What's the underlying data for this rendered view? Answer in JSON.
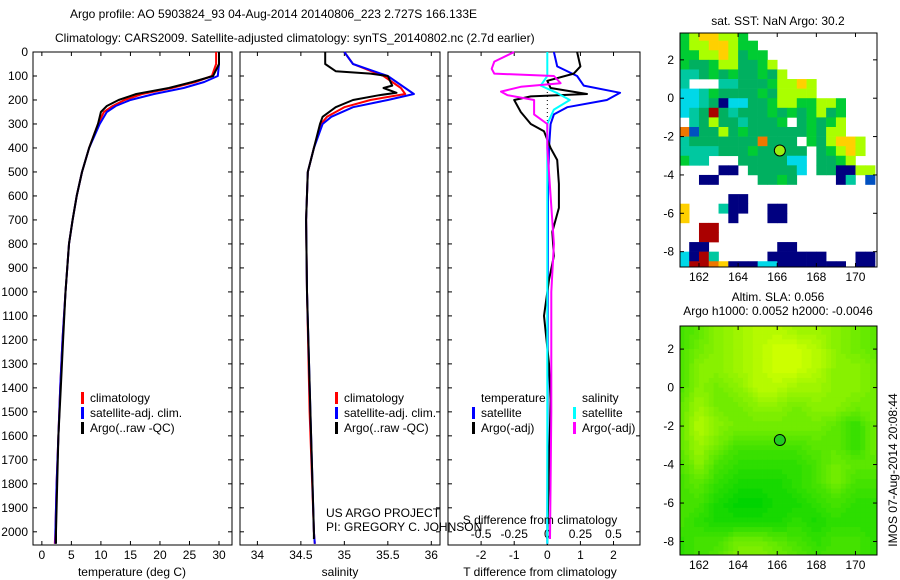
{
  "title": {
    "line1": "Argo profile: AO 5903824_93 04-Aug-2014 20140806_223 2.727S 166.133E",
    "line2": "Climatology: CARS2009. Satellite-adjusted climatology: synTS_20140802.nc (2.7d earlier)"
  },
  "credits": {
    "project": "US ARGO PROJECT",
    "pi": "PI: GREGORY C. JOHNSON",
    "imos": "IMOS 07-Aug-2014 20:08:44"
  },
  "colors": {
    "climatology": "#ff0000",
    "satellite": "#0000ff",
    "argo": "#000000",
    "sal_satellite": "#00ffff",
    "sal_argo": "#ff00ff"
  },
  "chart_data": [
    {
      "type": "line",
      "id": "temperature",
      "xlabel": "temperature (deg C)",
      "ylabel": "",
      "xlim": [
        -1.5,
        32.2
      ],
      "ylim": [
        0,
        2055
      ],
      "y_reversed": true,
      "xticks": [
        0,
        5,
        10,
        15,
        20,
        25,
        30
      ],
      "yticks": [
        0,
        100,
        200,
        300,
        400,
        500,
        600,
        700,
        800,
        900,
        1000,
        1100,
        1200,
        1300,
        1400,
        1500,
        1600,
        1700,
        1800,
        1900,
        2000
      ],
      "legend": [
        "climatology",
        "satellite-adj. clim.",
        "Argo(..raw -QC)"
      ],
      "legend_position": "lower-left",
      "depth": [
        0,
        50,
        100,
        125,
        150,
        175,
        200,
        225,
        250,
        300,
        400,
        500,
        600,
        700,
        800,
        1000,
        1200,
        1400,
        1600,
        1800,
        2000,
        2050
      ],
      "series": [
        {
          "name": "climatology",
          "color": "#ff0000",
          "values": [
            29.5,
            29.5,
            28.8,
            26,
            22,
            17,
            14,
            12,
            10.5,
            9.5,
            8,
            6.8,
            5.9,
            5.2,
            4.6,
            4.0,
            3.5,
            3.1,
            2.8,
            2.5,
            2.3,
            2.2
          ]
        },
        {
          "name": "satellite-adj. clim.",
          "color": "#0000ff",
          "values": [
            30,
            30,
            29.8,
            27.5,
            24,
            19,
            15,
            12.5,
            11,
            9.8,
            8,
            6.8,
            5.9,
            5.2,
            4.6,
            4.0,
            3.5,
            3.1,
            2.8,
            2.5,
            2.3,
            2.3
          ]
        },
        {
          "name": "Argo(..raw -QC)",
          "color": "#000000",
          "values": [
            30,
            30,
            29,
            25.5,
            21.5,
            16,
            13,
            11,
            10,
            9.5,
            8,
            6.8,
            5.9,
            5.2,
            4.6,
            4.0,
            3.6,
            3.2,
            2.8,
            2.6,
            2.4,
            2.4
          ]
        }
      ]
    },
    {
      "type": "line",
      "id": "salinity",
      "xlabel": "salinity",
      "xlim": [
        33.8,
        36.1
      ],
      "ylim": [
        0,
        2055
      ],
      "y_reversed": true,
      "xticks": [
        34,
        34.5,
        35,
        35.5,
        36
      ],
      "xticklabels": [
        "34",
        "34.5",
        "35",
        "35.5",
        "36"
      ],
      "legend": [
        "climatology",
        "satellite-adj. clim.",
        "Argo(..raw -QC)"
      ],
      "series": [
        {
          "name": "climatology",
          "color": "#ff0000",
          "depth": [
            0,
            50,
            100,
            150,
            175,
            200,
            230,
            270,
            300,
            400,
            500,
            700,
            1000,
            1500,
            2000,
            2050
          ],
          "values": [
            35.0,
            35.1,
            35.45,
            35.65,
            35.7,
            35.3,
            35.0,
            34.8,
            34.73,
            34.65,
            34.58,
            34.56,
            34.57,
            34.6,
            34.65,
            34.66
          ]
        },
        {
          "name": "satellite-adj. clim.",
          "color": "#0000ff",
          "depth": [
            0,
            50,
            100,
            150,
            175,
            200,
            230,
            270,
            300,
            400,
            500,
            700,
            1000,
            1500,
            2000,
            2050
          ],
          "values": [
            35.0,
            35.1,
            35.5,
            35.7,
            35.8,
            35.5,
            35.1,
            34.85,
            34.75,
            34.65,
            34.58,
            34.56,
            34.57,
            34.61,
            34.65,
            34.66
          ]
        },
        {
          "name": "Argo(..raw -QC)",
          "color": "#000000",
          "depth": [
            0,
            50,
            80,
            90,
            100,
            140,
            150,
            170,
            180,
            200,
            230,
            270,
            300,
            400,
            500,
            700,
            1000,
            1500,
            2000,
            2030
          ],
          "values": [
            34.78,
            34.78,
            34.9,
            35.3,
            35.5,
            35.55,
            35.45,
            35.6,
            35.4,
            35.1,
            34.9,
            34.75,
            34.72,
            34.65,
            34.58,
            34.56,
            34.57,
            34.61,
            34.65,
            34.65
          ]
        }
      ]
    },
    {
      "type": "line",
      "id": "difference",
      "xlabel": "T difference from climatology",
      "xlabel2": "S difference from climatology",
      "xlim": [
        -3.0,
        2.8
      ],
      "xlim2": [
        -0.75,
        0.7
      ],
      "ylim": [
        0,
        2055
      ],
      "y_reversed": true,
      "xticks": [
        -2,
        -1,
        0,
        1,
        2
      ],
      "xticks2": [
        -0.5,
        -0.25,
        0,
        0.25,
        0.5
      ],
      "xticklabels2": [
        "-0.5",
        "-0.25",
        "0",
        "0.25",
        "0.5"
      ],
      "legend_headers": [
        "temperature",
        "salinity"
      ],
      "legend": [
        "satellite",
        "Argo(-adj)",
        "satellite",
        "Argo(-adj)"
      ],
      "series": [
        {
          "name": "T satellite",
          "axis": "T",
          "color": "#0000ff",
          "depth": [
            0,
            60,
            100,
            140,
            170,
            200,
            230,
            260,
            300,
            400,
            600,
            2050
          ],
          "values": [
            0.2,
            0.3,
            0.9,
            1.1,
            2.2,
            1.8,
            0.6,
            0.2,
            0.1,
            0.05,
            0.02,
            0
          ]
        },
        {
          "name": "T Argo(-adj)",
          "axis": "T",
          "color": "#000000",
          "depth": [
            0,
            60,
            90,
            120,
            150,
            175,
            185,
            200,
            250,
            300,
            330,
            400,
            450,
            550,
            650,
            750,
            850,
            950,
            1100,
            1300,
            1450,
            2030
          ],
          "values": [
            0.9,
            1.0,
            0.8,
            0,
            0.1,
            1.2,
            -0.5,
            -1.0,
            -0.8,
            -0.5,
            -0.1,
            0.1,
            0.3,
            0.35,
            0.35,
            0.15,
            0.2,
            0.05,
            -0.1,
            0.05,
            0.1,
            0
          ]
        },
        {
          "name": "S satellite",
          "axis": "S",
          "color": "#00ffff",
          "depth": [
            0,
            100,
            140,
            170,
            200,
            240,
            300,
            2050
          ],
          "values": [
            0,
            0,
            -0.05,
            0.07,
            0.17,
            0.05,
            0,
            0
          ]
        },
        {
          "name": "S Argo(-adj)",
          "axis": "S",
          "color": "#ff00ff",
          "depth": [
            0,
            40,
            70,
            90,
            100,
            130,
            145,
            165,
            180,
            200,
            260,
            300,
            400,
            800,
            1000,
            1500,
            2030
          ],
          "values": [
            -0.25,
            -0.4,
            -0.42,
            -0.4,
            0.05,
            0.1,
            -0.2,
            -0.35,
            -0.3,
            -0.1,
            -0.1,
            0,
            0,
            0.05,
            0.03,
            0.03,
            0.02
          ]
        }
      ]
    },
    {
      "type": "heatmap",
      "id": "sst_map",
      "title": "sat. SST: NaN Argo: 30.2",
      "xlim": [
        161.03,
        171.1
      ],
      "ylim": [
        -8.8,
        3.4
      ],
      "xticks": [
        162,
        164,
        166,
        168,
        170
      ],
      "yticks": [
        2,
        0,
        -2,
        -4,
        -6,
        -8
      ],
      "cell_deg": 0.5,
      "lon_start": 161.0,
      "lat_start": 3.5,
      "palette": {
        "g": "#00cc33",
        "G": "#00b060",
        "y": "#aaff00",
        "Y": "#ffd000",
        "t": "#00c8a0",
        "c": "#00d8e8",
        "n": "#000080",
        "r": "#aa0000",
        "o": "#ee7700",
        "b": "#0050c0"
      },
      "rows": [
        "gyYYyyg.............",
        "gyyYYygg............",
        "ggyyYyGgg...........",
        "gGGgyyGGgy..........",
        "ttGgGgGGgGy.........",
        "t...ttGGGgyyYy......",
        "cctgGGGGgGyyyy......",
        "cctGnccGGgyyggyyg...",
        "ctGrGtGGGgGgGgyGg...",
        ".tGyGGtGGGg.GgGgy...",
        "obGGyGgGGGGGGgGyy...",
        "tGGGGGGGoGGG.gGyYYy.",
        "ttttGGGgGGGGG.GgyYy.",
        "gtt...GGGGGcc.GGgy..",
        "....nn.GGGGGc.GGnnyy",
        "..nn....GGgG....nt.b",
        "....................",
        ".....nn.............",
        "Y...tnn..nn.........",
        "Y....n...nn.........",
        "..rr................",
        "..rr................",
        ".nn.......nn........",
        "cnrt.....nnnnnn...nn",
        "crroYnnnccnnnnnnn.nn"
      ],
      "argo_position": {
        "lon": 166.133,
        "lat": -2.727,
        "color": "#99ee11"
      }
    },
    {
      "type": "heatmap",
      "id": "sla_map",
      "title": "Altim. SLA: 0.056",
      "subtitle": "Argo h1000: 0.0052 h2000: -0.0046",
      "xlim": [
        161.03,
        171.1
      ],
      "ylim": [
        -8.7,
        3.2
      ],
      "xticks": [
        162,
        164,
        166,
        168,
        170
      ],
      "yticks": [
        2,
        0,
        -2,
        -4,
        -6,
        -8
      ],
      "lons": [
        161,
        162,
        163,
        164,
        165,
        166,
        167,
        168,
        169,
        170,
        171
      ],
      "lats": [
        3,
        2,
        1,
        0,
        -1,
        -2,
        -3,
        -4,
        -5,
        -6,
        -7,
        -8,
        -9
      ],
      "values": [
        [
          3,
          4,
          6,
          7,
          8,
          8,
          7,
          7,
          6,
          5,
          4
        ],
        [
          3,
          5,
          6,
          7,
          8,
          9,
          9,
          8,
          6,
          5,
          4
        ],
        [
          3,
          6,
          6,
          7,
          8,
          9,
          9,
          8,
          6,
          6,
          5
        ],
        [
          3,
          6,
          5,
          6,
          8,
          8,
          7,
          7,
          6,
          6,
          5
        ],
        [
          4,
          7,
          5,
          5,
          6,
          6,
          5,
          6,
          6,
          5,
          5
        ],
        [
          4,
          8,
          6,
          5,
          5,
          5,
          5,
          5,
          4,
          2,
          5
        ],
        [
          4,
          7,
          5,
          3,
          3,
          3,
          3,
          4,
          4,
          2,
          5
        ],
        [
          3,
          6,
          3,
          2,
          2,
          2,
          2,
          3,
          5,
          4,
          4
        ],
        [
          3,
          4,
          2,
          1,
          1,
          1,
          2,
          3,
          5,
          3,
          3
        ],
        [
          3,
          3,
          1,
          0,
          0,
          1,
          1,
          2,
          3,
          2,
          2
        ],
        [
          3,
          2,
          1,
          1,
          1,
          1,
          2,
          1,
          2,
          2,
          2
        ],
        [
          2,
          3,
          3,
          5,
          5,
          4,
          3,
          2,
          3,
          3,
          2
        ],
        [
          2,
          3,
          4,
          6,
          6,
          5,
          4,
          3,
          3,
          3,
          2
        ]
      ],
      "color_low": "#00d400",
      "color_high": "#ccff00",
      "argo_position": {
        "lon": 166.133,
        "lat": -2.727,
        "color": "#22cc22"
      }
    }
  ]
}
